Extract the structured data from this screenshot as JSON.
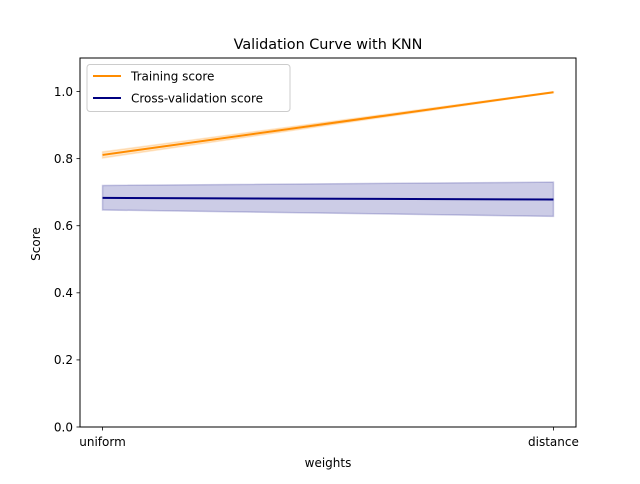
{
  "chart_data": {
    "type": "line",
    "title": "Validation Curve with KNN",
    "xlabel": "weights",
    "ylabel": "Score",
    "categories": [
      "uniform",
      "distance"
    ],
    "ylim": [
      0.0,
      1.1
    ],
    "yticks": [
      "0.0",
      "0.2",
      "0.4",
      "0.6",
      "0.8",
      "1.0"
    ],
    "grid": false,
    "legend_position": "upper-left",
    "series": [
      {
        "name": "Training score",
        "color": "#ff8c00",
        "values": [
          0.811,
          0.998
        ],
        "band_lower": [
          0.802,
          0.997
        ],
        "band_upper": [
          0.82,
          0.999
        ]
      },
      {
        "name": "Cross-validation score",
        "color": "#000080",
        "values": [
          0.683,
          0.678
        ],
        "band_lower": [
          0.647,
          0.628
        ],
        "band_upper": [
          0.72,
          0.73
        ]
      }
    ]
  }
}
